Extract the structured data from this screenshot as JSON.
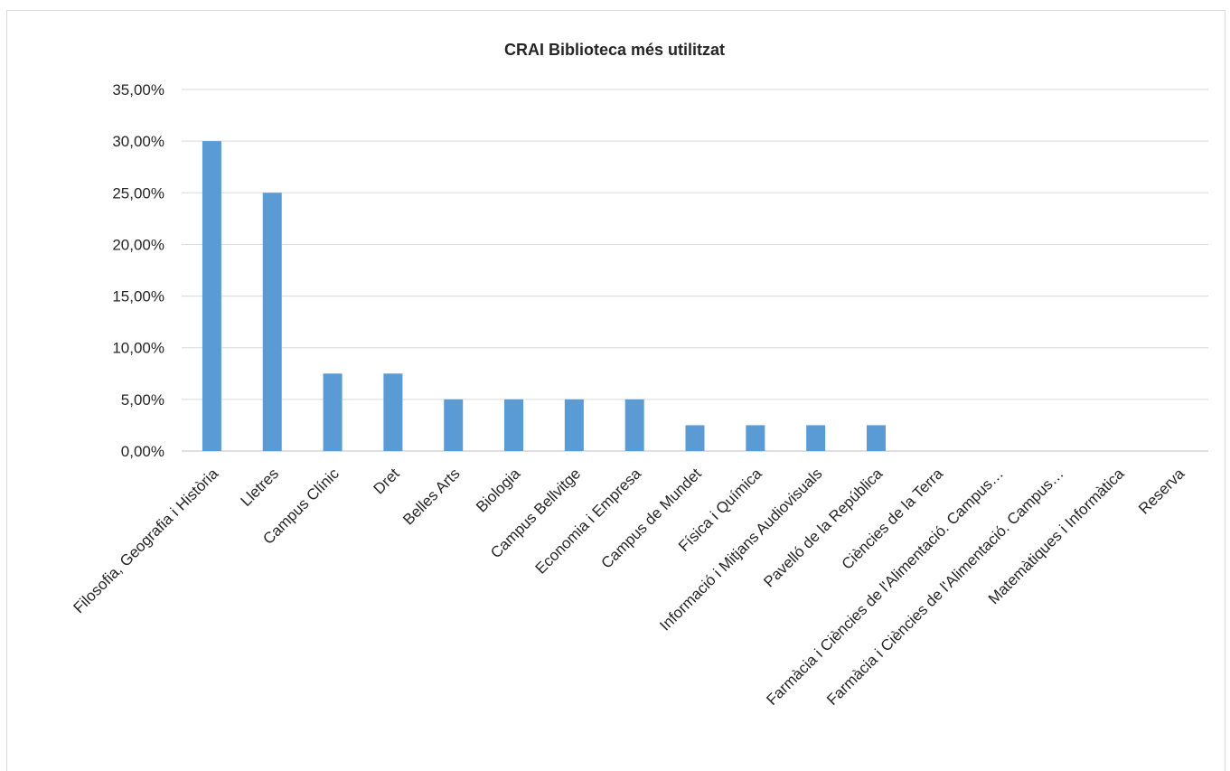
{
  "chart_data": {
    "type": "bar",
    "title": "CRAI Biblioteca més utilitzat",
    "xlabel": "",
    "ylabel": "",
    "ylim": [
      0,
      0.35
    ],
    "ytick_values": [
      0,
      0.05,
      0.1,
      0.15,
      0.2,
      0.25,
      0.3,
      0.35
    ],
    "ytick_labels": [
      "0,00%",
      "5,00%",
      "10,00%",
      "15,00%",
      "20,00%",
      "25,00%",
      "30,00%",
      "35,00%"
    ],
    "grid": true,
    "legend": "none",
    "bar_color": "#5b9bd5",
    "categories": [
      "Filosofia, Geografia i Història",
      "Lletres",
      "Campus Clínic",
      "Dret",
      "Belles Arts",
      "Biologia",
      "Campus Bellvitge",
      "Economia i Empresa",
      "Campus de Mundet",
      "Física i Química",
      "Informació i Mitjans Audiovisuals",
      "Pavelló de la República",
      "Ciències de la Terra",
      "Farmàcia i Ciències de l'Alimentació. Campus…",
      "Farmàcia i Ciències de l'Alimentació. Campus…",
      "Matemàtiques i Informàtica",
      "Reserva"
    ],
    "values": [
      0.3,
      0.25,
      0.075,
      0.075,
      0.05,
      0.05,
      0.05,
      0.05,
      0.025,
      0.025,
      0.025,
      0.025,
      0,
      0,
      0,
      0,
      0
    ]
  }
}
